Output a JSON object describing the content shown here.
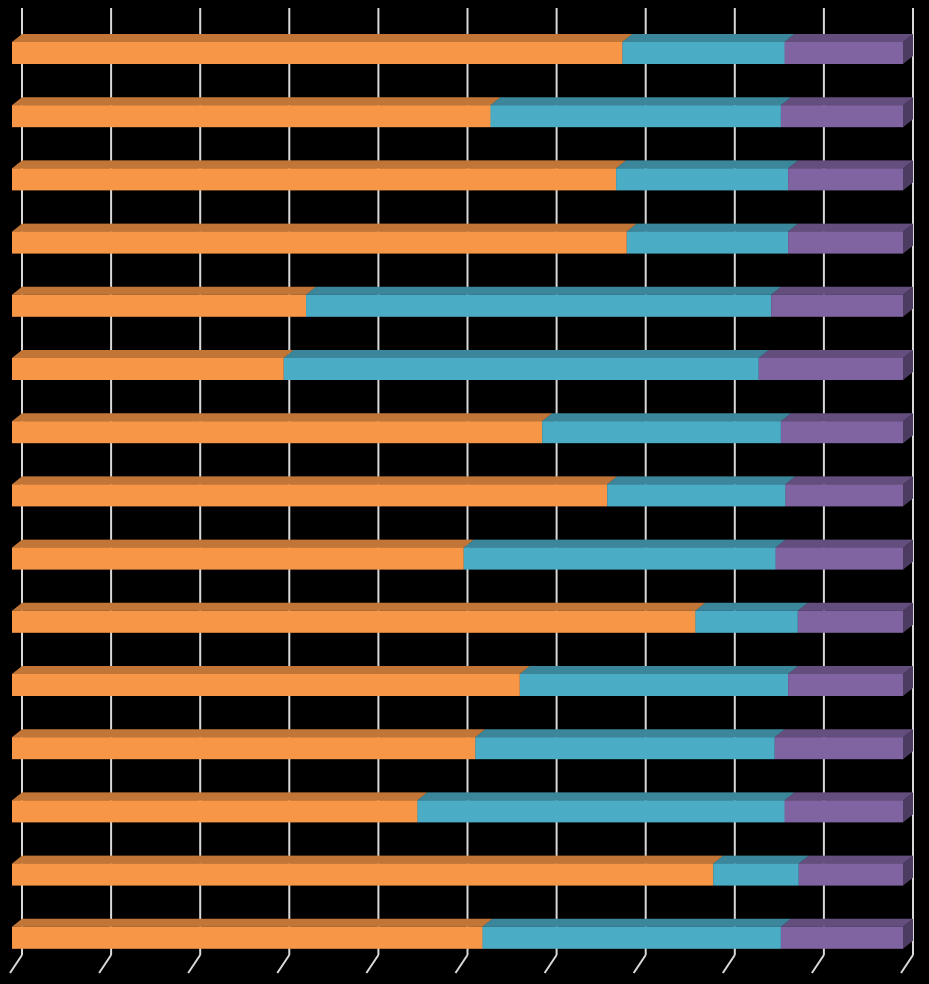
{
  "chart_data": {
    "type": "bar",
    "orientation": "horizontal",
    "stacked": "percent",
    "style": "3d",
    "xlim": [
      0,
      100
    ],
    "grid": true,
    "legend": "none",
    "background": "#000000",
    "grid_color": "#d9d9d9",
    "series": [
      {
        "color": "#f79646",
        "values": [
          68.5,
          53.7,
          67.8,
          69.0,
          33.0,
          30.5,
          59.5,
          66.8,
          50.7,
          76.7,
          57.0,
          52.0,
          45.5,
          78.7,
          52.8
        ]
      },
      {
        "color": "#4bacc6",
        "values": [
          18.2,
          32.6,
          19.3,
          18.1,
          52.2,
          53.3,
          26.8,
          20.0,
          35.0,
          11.5,
          30.1,
          33.6,
          41.2,
          9.6,
          33.5
        ]
      },
      {
        "color": "#8064a2",
        "values": [
          13.3,
          13.7,
          12.9,
          12.9,
          14.8,
          16.2,
          13.7,
          13.2,
          14.3,
          11.8,
          12.9,
          14.4,
          13.3,
          11.7,
          13.7
        ]
      }
    ]
  }
}
